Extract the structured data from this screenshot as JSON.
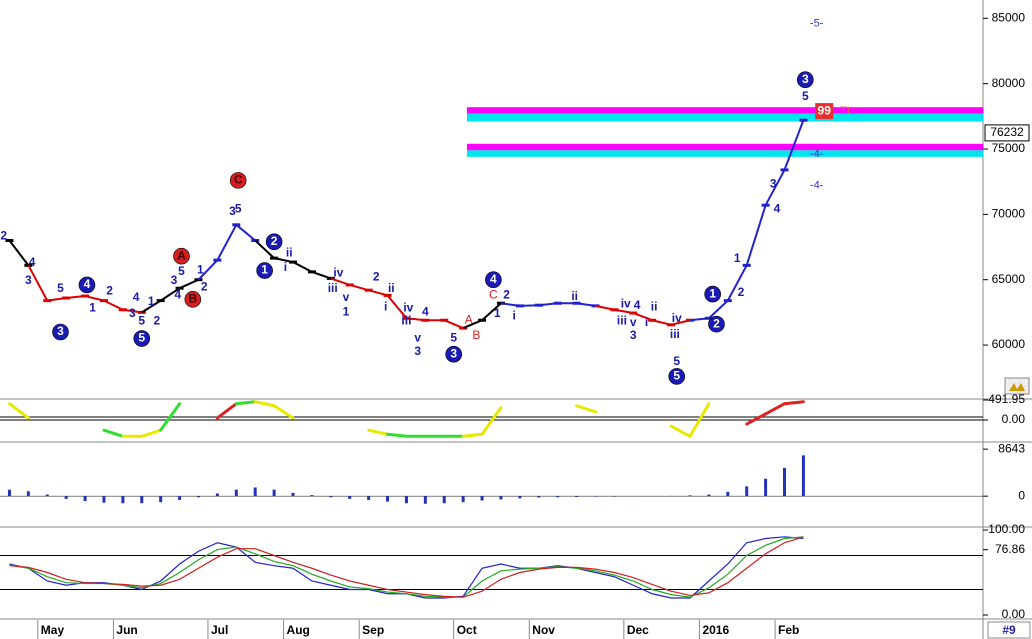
{
  "chart_data": [
    {
      "type": "price",
      "categories": [
        null,
        null,
        "May",
        null,
        null,
        null,
        "Jun",
        null,
        null,
        null,
        null,
        "Jul",
        null,
        null,
        null,
        "Aug",
        null,
        null,
        null,
        "Sep",
        null,
        null,
        null,
        null,
        "Oct",
        null,
        null,
        null,
        "Nov",
        null,
        null,
        null,
        null,
        "Dec",
        null,
        null,
        null,
        "2016",
        null,
        null,
        null,
        "Feb",
        null,
        null,
        null,
        null,
        null,
        null,
        null,
        null,
        null,
        null
      ],
      "values": [
        68000,
        66100,
        63400,
        63600,
        63750,
        63400,
        62700,
        62500,
        63400,
        64350,
        65000,
        66500,
        69200,
        68000,
        66650,
        66350,
        65600,
        65100,
        64600,
        64200,
        63800,
        62050,
        61900,
        61900,
        61300,
        61900,
        63200,
        63000,
        63050,
        63200,
        63200,
        63000,
        62700,
        62450,
        61900,
        61550,
        61900,
        62050,
        63400,
        66100,
        70700,
        73400,
        77200,
        null,
        null,
        null,
        null,
        null,
        null,
        null,
        null,
        null
      ],
      "colors": [
        "#000",
        "#000",
        "#d00",
        "#d00",
        "#d00",
        "#d00",
        "#d00",
        "#d00",
        "#000",
        "#000",
        "#000",
        "#2222cc",
        "#2222cc",
        "#2222cc",
        "#000",
        "#000",
        "#000",
        "#000",
        "#d00",
        "#d00",
        "#d00",
        "#d00",
        "#d00",
        "#d00",
        "#d00",
        "#000",
        "#000",
        "#2222cc",
        "#2222cc",
        "#2222cc",
        "#2222cc",
        "#2222cc",
        "#d00",
        "#d00",
        "#d00",
        "#d00",
        "#d00",
        "#2222cc",
        "#2222cc",
        "#2222cc",
        "#2222cc",
        "#2222cc",
        "#2222cc",
        null,
        null,
        null,
        null,
        null,
        null,
        null,
        null,
        null
      ],
      "ylim": [
        55950,
        86400
      ],
      "yticks": [
        60000,
        65000,
        70000,
        75000,
        80000,
        85000
      ],
      "last_value": 76232,
      "bands": [
        {
          "from": 24.2,
          "low": 77700,
          "high": 78200,
          "color": "#ff00ff"
        },
        {
          "from": 24.2,
          "low": 77100,
          "high": 77700,
          "color": "#00e5ee"
        },
        {
          "from": 24.2,
          "low": 74900,
          "high": 75400,
          "color": "#ff00ff"
        },
        {
          "from": 24.2,
          "low": 74400,
          "high": 74900,
          "color": "#00e5ee"
        }
      ],
      "annotations": [
        {
          "text": "2",
          "i": -0.3,
          "price": 68300,
          "style": "blue"
        },
        {
          "text": "4",
          "i": 1.2,
          "price": 66300,
          "style": "blue"
        },
        {
          "text": "3",
          "i": 1.0,
          "price": 64900,
          "style": "blue"
        },
        {
          "text": "5",
          "i": 2.7,
          "price": 64300,
          "style": "blue"
        },
        {
          "text": "3",
          "i": 2.7,
          "price": 61000,
          "style": "circle-blue"
        },
        {
          "text": "4",
          "i": 4.1,
          "price": 64600,
          "style": "circle-blue"
        },
        {
          "text": "1",
          "i": 4.4,
          "price": 62800,
          "style": "blue"
        },
        {
          "text": "2",
          "i": 5.3,
          "price": 64100,
          "style": "blue"
        },
        {
          "text": "4",
          "i": 6.7,
          "price": 63600,
          "style": "blue"
        },
        {
          "text": "3",
          "i": 6.5,
          "price": 62400,
          "style": "blue"
        },
        {
          "text": "5",
          "i": 7.0,
          "price": 61800,
          "style": "blue"
        },
        {
          "text": "5",
          "i": 7.0,
          "price": 60500,
          "style": "circle-blue"
        },
        {
          "text": "2",
          "i": 7.8,
          "price": 61800,
          "style": "blue"
        },
        {
          "text": "1",
          "i": 7.5,
          "price": 63300,
          "style": "blue"
        },
        {
          "text": "3",
          "i": 8.7,
          "price": 64900,
          "style": "blue"
        },
        {
          "text": "4",
          "i": 8.9,
          "price": 63800,
          "style": "blue"
        },
        {
          "text": "5",
          "i": 9.1,
          "price": 65600,
          "style": "blue"
        },
        {
          "text": "A",
          "i": 9.1,
          "price": 66800,
          "style": "circle-red"
        },
        {
          "text": "B",
          "i": 9.7,
          "price": 63500,
          "style": "circle-red"
        },
        {
          "text": "1",
          "i": 10.1,
          "price": 65700,
          "style": "blue"
        },
        {
          "text": "2",
          "i": 10.3,
          "price": 64400,
          "style": "blue"
        },
        {
          "text": "3",
          "i": 11.8,
          "price": 70200,
          "style": "blue"
        },
        {
          "text": "5",
          "i": 12.1,
          "price": 70400,
          "style": "blue"
        },
        {
          "text": "C",
          "i": 12.1,
          "price": 72600,
          "style": "circle-red"
        },
        {
          "text": "1",
          "i": 13.5,
          "price": 65700,
          "style": "circle-blue"
        },
        {
          "text": "2",
          "i": 14.0,
          "price": 67900,
          "style": "circle-blue"
        },
        {
          "text": "i",
          "i": 14.6,
          "price": 65900,
          "style": "blue"
        },
        {
          "text": "ii",
          "i": 14.8,
          "price": 67000,
          "style": "blue"
        },
        {
          "text": "iv",
          "i": 17.4,
          "price": 65500,
          "style": "blue"
        },
        {
          "text": "iii",
          "i": 17.1,
          "price": 64300,
          "style": "blue"
        },
        {
          "text": "v",
          "i": 17.8,
          "price": 63600,
          "style": "blue"
        },
        {
          "text": "1",
          "i": 17.8,
          "price": 62500,
          "style": "blue"
        },
        {
          "text": "2",
          "i": 19.4,
          "price": 65200,
          "style": "blue"
        },
        {
          "text": "i",
          "i": 19.9,
          "price": 62900,
          "style": "blue"
        },
        {
          "text": "ii",
          "i": 20.2,
          "price": 64300,
          "style": "blue"
        },
        {
          "text": "iv",
          "i": 21.1,
          "price": 62800,
          "style": "blue"
        },
        {
          "text": "iii",
          "i": 21.0,
          "price": 61800,
          "style": "blue"
        },
        {
          "text": "4",
          "i": 22.0,
          "price": 62500,
          "style": "blue"
        },
        {
          "text": "v",
          "i": 21.6,
          "price": 60500,
          "style": "blue"
        },
        {
          "text": "3",
          "i": 21.6,
          "price": 59500,
          "style": "blue"
        },
        {
          "text": "5",
          "i": 23.5,
          "price": 60500,
          "style": "blue"
        },
        {
          "text": "3",
          "i": 23.5,
          "price": 59300,
          "style": "circle-blue"
        },
        {
          "text": "A",
          "i": 24.3,
          "price": 61900,
          "style": "red"
        },
        {
          "text": "B",
          "i": 24.7,
          "price": 60700,
          "style": "red"
        },
        {
          "text": "C",
          "i": 25.6,
          "price": 63800,
          "style": "red"
        },
        {
          "text": "4",
          "i": 25.6,
          "price": 65000,
          "style": "circle-blue"
        },
        {
          "text": "2",
          "i": 26.3,
          "price": 63800,
          "style": "blue"
        },
        {
          "text": "1",
          "i": 25.8,
          "price": 62400,
          "style": "blue"
        },
        {
          "text": "i",
          "i": 26.7,
          "price": 62200,
          "style": "blue"
        },
        {
          "text": "ii",
          "i": 29.9,
          "price": 63700,
          "style": "blue"
        },
        {
          "text": "iv",
          "i": 32.6,
          "price": 63100,
          "style": "blue"
        },
        {
          "text": "4",
          "i": 33.2,
          "price": 63000,
          "style": "blue"
        },
        {
          "text": "iii",
          "i": 32.4,
          "price": 61800,
          "style": "blue"
        },
        {
          "text": "v",
          "i": 33.0,
          "price": 61700,
          "style": "blue"
        },
        {
          "text": "3",
          "i": 33.0,
          "price": 60700,
          "style": "blue"
        },
        {
          "text": "i",
          "i": 33.7,
          "price": 61700,
          "style": "blue"
        },
        {
          "text": "ii",
          "i": 34.1,
          "price": 62900,
          "style": "blue"
        },
        {
          "text": "iv",
          "i": 35.3,
          "price": 62000,
          "style": "blue"
        },
        {
          "text": "iii",
          "i": 35.2,
          "price": 60800,
          "style": "blue"
        },
        {
          "text": "5",
          "i": 35.3,
          "price": 58700,
          "style": "blue"
        },
        {
          "text": "5",
          "i": 35.3,
          "price": 57600,
          "style": "circle-blue"
        },
        {
          "text": "1",
          "i": 37.2,
          "price": 63900,
          "style": "circle-blue"
        },
        {
          "text": "2",
          "i": 37.4,
          "price": 61600,
          "style": "circle-blue"
        },
        {
          "text": "1",
          "i": 38.5,
          "price": 66600,
          "style": "blue"
        },
        {
          "text": "2",
          "i": 38.7,
          "price": 64000,
          "style": "blue"
        },
        {
          "text": "3",
          "i": 40.4,
          "price": 72300,
          "style": "blue"
        },
        {
          "text": "4",
          "i": 40.6,
          "price": 70400,
          "style": "blue"
        },
        {
          "text": "5",
          "i": 42.1,
          "price": 79000,
          "style": "blue"
        },
        {
          "text": "3",
          "i": 42.1,
          "price": 80300,
          "style": "circle-blue"
        },
        {
          "text": "-4-",
          "i": 42.7,
          "price": 74600,
          "style": "blue-light"
        },
        {
          "text": "-4-",
          "i": 42.7,
          "price": 72200,
          "style": "blue-light"
        },
        {
          "text": "-5-",
          "i": 42.7,
          "price": 84600,
          "style": "blue-light"
        },
        {
          "text": "99",
          "i": 43.1,
          "price": 77900,
          "style": "red-box"
        },
        {
          "text": "TI",
          "i": 44.2,
          "price": 77900,
          "style": "red-light"
        }
      ]
    },
    {
      "type": "oscillator",
      "values": [
        400,
        50,
        null,
        null,
        null,
        -250,
        -400,
        -400,
        -250,
        400,
        null,
        50,
        400,
        450,
        350,
        50,
        null,
        null,
        null,
        -250,
        -350,
        -400,
        -400,
        -400,
        -400,
        -350,
        300,
        null,
        null,
        null,
        350,
        200,
        null,
        null,
        null,
        -150,
        -400,
        400,
        null,
        -100,
        150,
        400,
        450,
        null,
        null,
        null,
        null,
        null,
        null,
        null,
        null,
        null
      ],
      "colors": [
        "#e8e800",
        "#e8e800",
        null,
        null,
        null,
        "#33dd33",
        "#33dd33",
        "#e8e800",
        "#e8e800",
        "#33dd33",
        null,
        "#dd2222",
        "#dd2222",
        "#33dd33",
        "#e8e800",
        "#e8e800",
        null,
        null,
        null,
        "#e8e800",
        "#e8e800",
        "#33dd33",
        "#33dd33",
        "#33dd33",
        "#33dd33",
        "#e8e800",
        "#e8e800",
        null,
        null,
        null,
        "#e8e800",
        "#e8e800",
        null,
        null,
        null,
        "#e8e800",
        "#e8e800",
        "#e8e800",
        null,
        "#dd2222",
        "#dd2222",
        "#dd2222",
        "#dd2222",
        null,
        null,
        null,
        null,
        null,
        null,
        null,
        null,
        null
      ],
      "ylim": [
        -491.95,
        491.95
      ],
      "yticks": [
        {
          "value": 0,
          "label": "0.00"
        },
        491.95
      ]
    },
    {
      "type": "histogram-bar",
      "values": [
        1200,
        900,
        300,
        -500,
        -900,
        -1200,
        -1300,
        -1300,
        -1100,
        -700,
        -200,
        500,
        1200,
        1600,
        1200,
        600,
        200,
        -200,
        -500,
        -700,
        -1000,
        -1300,
        -1400,
        -1300,
        -1100,
        -800,
        -600,
        -400,
        -250,
        -200,
        -150,
        -100,
        -100,
        -50,
        0,
        50,
        150,
        300,
        800,
        1800,
        3200,
        5200,
        7500,
        null,
        null,
        null,
        null,
        null,
        null,
        null,
        null,
        null
      ],
      "color": "#2233bb",
      "ylim": [
        -5300,
        9400
      ],
      "yticks": [
        0,
        8643
      ]
    },
    {
      "type": "line",
      "series": [
        {
          "color": "#2222cc",
          "values": [
            60,
            55,
            40,
            35,
            38,
            38,
            35,
            30,
            40,
            60,
            75,
            85,
            80,
            62,
            58,
            55,
            40,
            35,
            30,
            30,
            25,
            25,
            20,
            20,
            22,
            55,
            60,
            55,
            55,
            58,
            55,
            50,
            45,
            35,
            25,
            20,
            20,
            40,
            60,
            85,
            90,
            92,
            90,
            null,
            null,
            null,
            null,
            null,
            null,
            null,
            null,
            null
          ]
        },
        {
          "color": "#22aa22",
          "values": [
            59,
            55,
            45,
            38,
            37,
            37,
            35,
            32,
            37,
            50,
            65,
            77,
            80,
            72,
            63,
            58,
            48,
            40,
            33,
            31,
            27,
            25,
            22,
            21,
            21,
            40,
            52,
            54,
            55,
            57,
            55,
            52,
            47,
            40,
            30,
            24,
            21,
            32,
            48,
            70,
            82,
            90,
            92,
            null,
            null,
            null,
            null,
            null,
            null,
            null,
            null,
            null
          ]
        },
        {
          "color": "#cc2222",
          "values": [
            58,
            56,
            50,
            42,
            38,
            37,
            36,
            34,
            35,
            42,
            55,
            68,
            78,
            78,
            70,
            62,
            55,
            47,
            40,
            35,
            30,
            27,
            24,
            22,
            21,
            28,
            42,
            50,
            54,
            56,
            56,
            54,
            50,
            44,
            36,
            28,
            23,
            26,
            38,
            55,
            72,
            85,
            92,
            null,
            null,
            null,
            null,
            null,
            null,
            null,
            null,
            null
          ]
        }
      ],
      "levels": [
        70,
        30
      ],
      "ylim": [
        0,
        100
      ],
      "yticks": [
        {
          "value": 0,
          "label": "0.00"
        },
        76.86,
        {
          "value": 100,
          "label": "100.00"
        }
      ]
    }
  ],
  "footer": {
    "tag": "#9"
  }
}
